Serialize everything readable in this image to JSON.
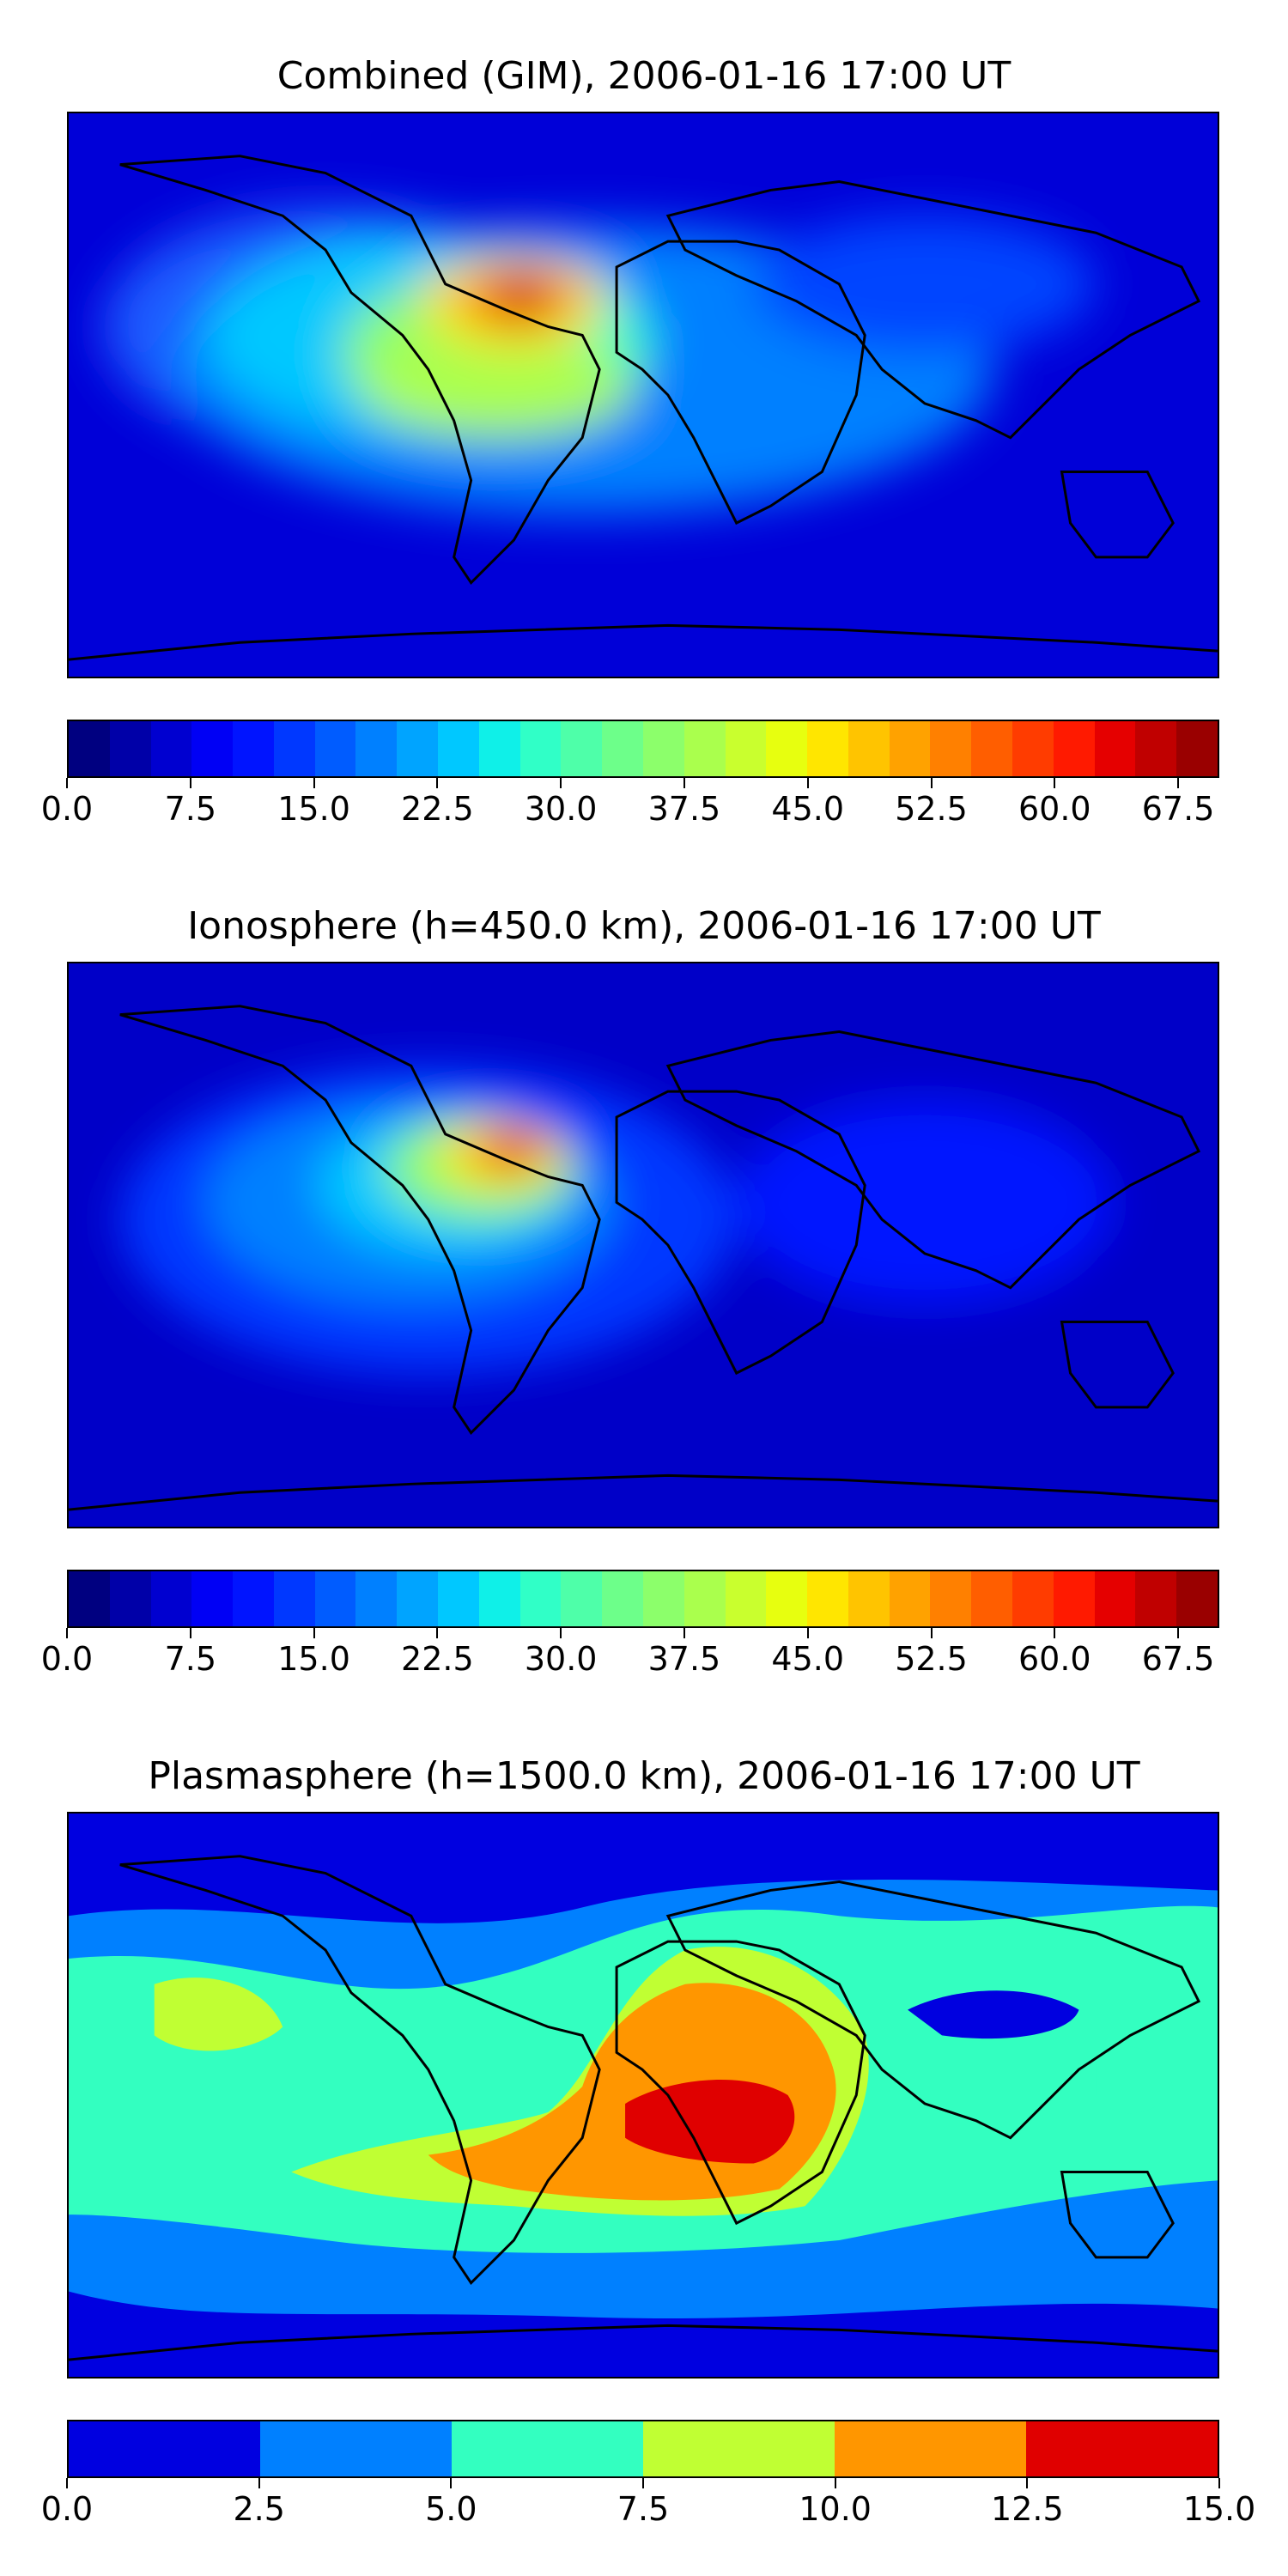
{
  "panels": [
    {
      "title": "Combined (GIM), 2006-01-16 17:00 UT",
      "colorbar": {
        "ticks": [
          "0.0",
          "7.5",
          "15.0",
          "22.5",
          "30.0",
          "37.5",
          "45.0",
          "52.5",
          "60.0",
          "67.5"
        ],
        "min": 0.0,
        "max": 70.0,
        "levels": 28
      }
    },
    {
      "title": "Ionosphere  (h=450.0 km), 2006-01-16 17:00 UT",
      "colorbar": {
        "ticks": [
          "0.0",
          "7.5",
          "15.0",
          "22.5",
          "30.0",
          "37.5",
          "45.0",
          "52.5",
          "60.0",
          "67.5"
        ],
        "min": 0.0,
        "max": 70.0,
        "levels": 28
      }
    },
    {
      "title": "Plasmasphere (h=1500.0 km), 2006-01-16 17:00 UT",
      "colorbar": {
        "ticks": [
          "0.0",
          "2.5",
          "5.0",
          "7.5",
          "10.0",
          "12.5",
          "15.0"
        ],
        "min": 0.0,
        "max": 15.0,
        "levels": 6
      }
    }
  ],
  "colors": {
    "jet28": [
      "#000080",
      "#0000a8",
      "#0000d0",
      "#0000f5",
      "#0014ff",
      "#0038ff",
      "#005cff",
      "#0080ff",
      "#00a4ff",
      "#00c8ff",
      "#0ff0e8",
      "#30ffc7",
      "#4effa9",
      "#6dff8a",
      "#8cff6b",
      "#aaff4d",
      "#c9ff2e",
      "#e7ff0f",
      "#ffe600",
      "#ffc400",
      "#ffa200",
      "#ff8000",
      "#ff5e00",
      "#ff3c00",
      "#ff1a00",
      "#e50000",
      "#c00000",
      "#9a0000"
    ],
    "jet6": [
      "#0000e0",
      "#0080ff",
      "#33ffc0",
      "#c0ff33",
      "#ff9600",
      "#e00000"
    ],
    "background_low": "#0000c8",
    "background_plasma": "#0000e0",
    "coastline": "#000000"
  }
}
